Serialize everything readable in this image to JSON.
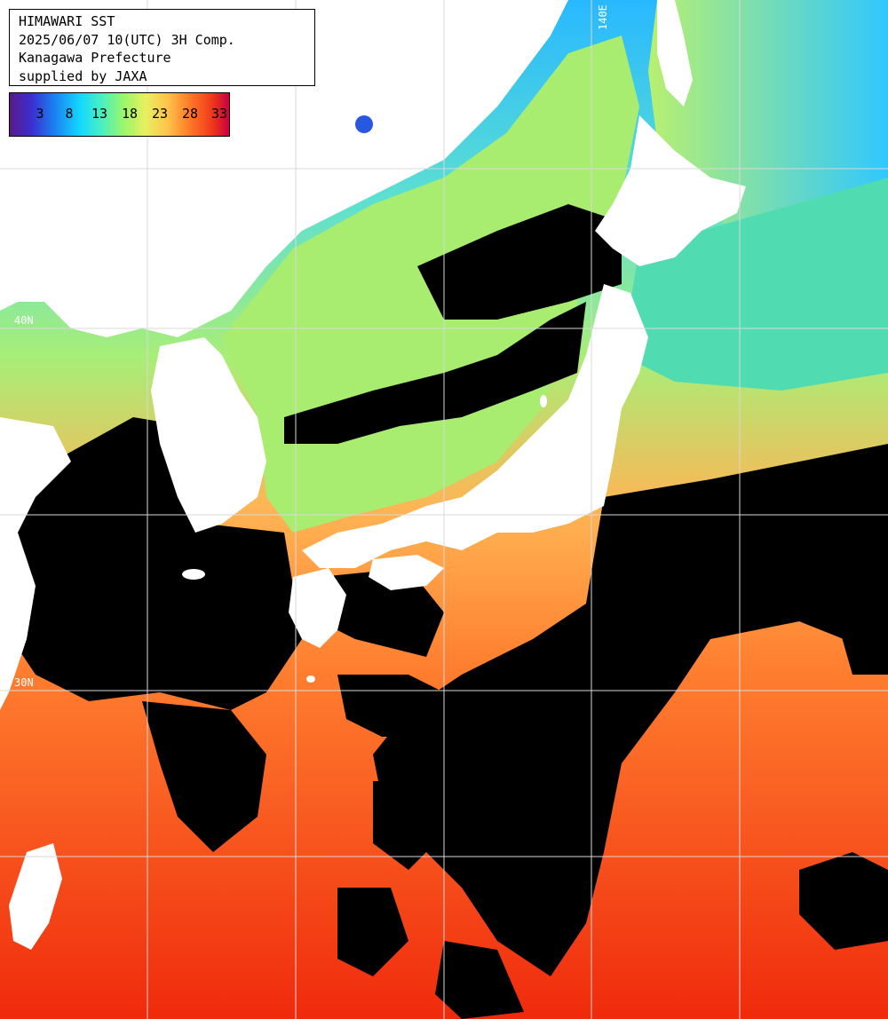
{
  "title": {
    "line1": "HIMAWARI SST",
    "line2": "2025/06/07 10(UTC) 3H Comp.",
    "line3": "Kanagawa Prefecture",
    "line4": "supplied by JAXA"
  },
  "legend": {
    "labels": [
      "3",
      "8",
      "13",
      "18",
      "23",
      "28",
      "33"
    ],
    "colors": [
      "#5a1a8a",
      "#1a7ff0",
      "#12d8ff",
      "#9cf56a",
      "#e8f060",
      "#ff7a28",
      "#c80040"
    ]
  },
  "grid_labels": {
    "lon_140": "140E",
    "lat_40": "40N",
    "lat_30": "30N"
  },
  "colors": {
    "cloud": "#000000",
    "land": "#ffffff",
    "grid": "#d8d8d8",
    "sea_cold": "#1ea0ff",
    "sea_cool": "#8cf080",
    "sea_warm": "#ff8c30",
    "sea_hot": "#f03010"
  }
}
